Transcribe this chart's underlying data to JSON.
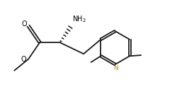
{
  "bg_color": "#ffffff",
  "bond_color": "#1a1a1a",
  "text_color": "#000000",
  "n_color": "#b8860b",
  "figsize": [
    2.51,
    1.5
  ],
  "dpi": 100,
  "xlim": [
    0,
    10
  ],
  "ylim": [
    0,
    6
  ]
}
